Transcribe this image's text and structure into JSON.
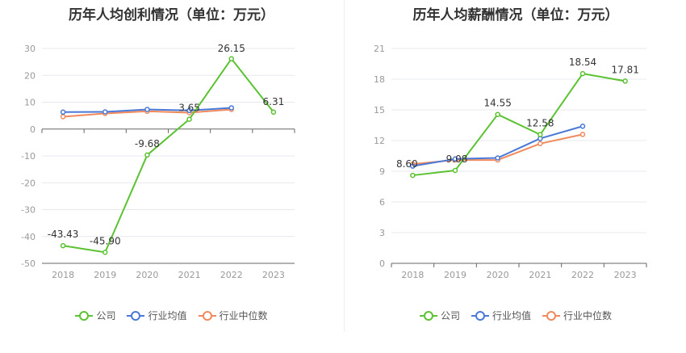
{
  "colors": {
    "company": "#5bc232",
    "industry_avg": "#4a78d6",
    "industry_median": "#f08a5d",
    "grid": "#e5e8ef",
    "axis": "#666666",
    "tick": "#999999"
  },
  "legend": {
    "company": "公司",
    "industry_avg": "行业均值",
    "industry_median": "行业中位数"
  },
  "chart_data": [
    {
      "type": "line",
      "title": "历年人均创利情况（单位：万元）",
      "categories": [
        "2018",
        "2019",
        "2020",
        "2021",
        "2022",
        "2023"
      ],
      "ylim": [
        -50,
        30
      ],
      "yticks": [
        30,
        20,
        10,
        0,
        -10,
        -20,
        -30,
        -40,
        -50
      ],
      "ytick_labels": [
        "30",
        "20",
        "10",
        "0",
        "-10",
        "-20",
        "-30",
        "-40",
        "-50"
      ],
      "series": [
        {
          "name": "公司",
          "key": "company",
          "values": [
            -43.43,
            -45.9,
            -9.68,
            3.65,
            26.15,
            6.31
          ],
          "labels": [
            "-43.43",
            "-45.90",
            "-9.68",
            "3.65",
            "26.15",
            "6.31"
          ]
        },
        {
          "name": "行业均值",
          "key": "industry_avg",
          "values": [
            6.3,
            6.4,
            7.3,
            6.9,
            7.9,
            null
          ]
        },
        {
          "name": "行业中位数",
          "key": "industry_median",
          "values": [
            4.6,
            5.8,
            6.6,
            6.1,
            7.3,
            null
          ]
        }
      ]
    },
    {
      "type": "line",
      "title": "历年人均薪酬情况（单位：万元）",
      "categories": [
        "2018",
        "2019",
        "2020",
        "2021",
        "2022",
        "2023"
      ],
      "ylim": [
        0,
        21
      ],
      "yticks": [
        21,
        18,
        15,
        12,
        9,
        6,
        3,
        0
      ],
      "ytick_labels": [
        "21",
        "18",
        "15",
        "12",
        "9",
        "6",
        "3",
        "0"
      ],
      "series": [
        {
          "name": "公司",
          "key": "company",
          "values": [
            8.6,
            9.08,
            14.55,
            12.58,
            18.54,
            17.81
          ],
          "labels": [
            "8.60",
            "9.08",
            "14.55",
            "12.58",
            "18.54",
            "17.81"
          ]
        },
        {
          "name": "行业均值",
          "key": "industry_avg",
          "values": [
            9.5,
            10.2,
            10.3,
            12.2,
            13.4,
            null
          ]
        },
        {
          "name": "行业中位数",
          "key": "industry_median",
          "values": [
            9.7,
            10.1,
            10.1,
            11.7,
            12.6,
            null
          ]
        }
      ]
    }
  ]
}
